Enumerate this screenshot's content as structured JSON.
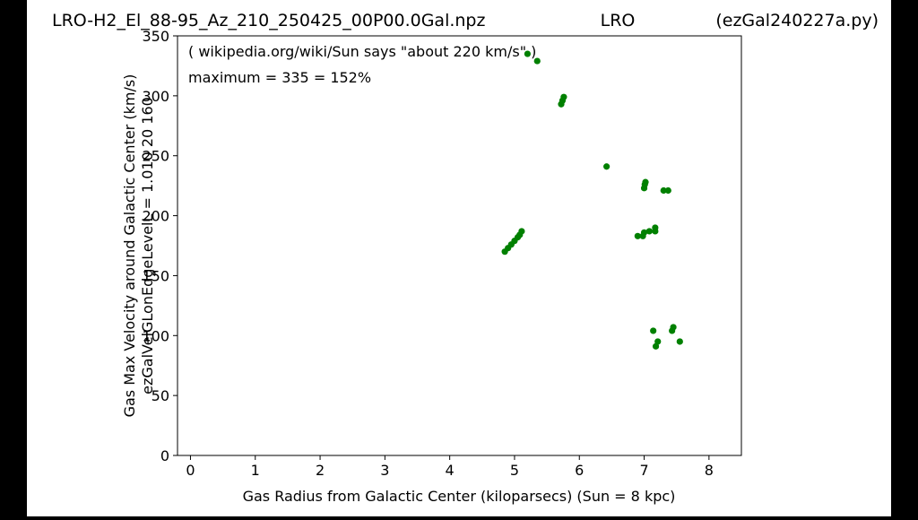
{
  "header": {
    "left": "LRO-H2_El_88-95_Az_210_250425_00P00.0Gal.npz",
    "center": "LRO",
    "right": "(ezGal240227a.py)"
  },
  "chart_data": {
    "type": "scatter",
    "xlabel": "Gas Radius from Galactic Center (kiloparsecs)  (Sun = 8 kpc)",
    "ylabel_lines": [
      "Gas Max Velocity around Galactic Center (km/s)",
      "ezGalVelGLonEdgeLevelL = 1.010  20  160"
    ],
    "xlim": [
      -0.2,
      8.5
    ],
    "ylim": [
      0,
      350
    ],
    "x_ticks": [
      0,
      1,
      2,
      3,
      4,
      5,
      6,
      7,
      8
    ],
    "y_ticks": [
      0,
      50,
      100,
      150,
      200,
      250,
      300,
      350
    ],
    "annotations": [
      "( wikipedia.org/wiki/Sun says \"about 220 km/s\" )",
      "maximum = 335 = 152%"
    ],
    "marker_color": "#008000",
    "points": [
      {
        "x": 4.85,
        "y": 170
      },
      {
        "x": 4.9,
        "y": 173
      },
      {
        "x": 4.95,
        "y": 176
      },
      {
        "x": 5.0,
        "y": 179
      },
      {
        "x": 5.05,
        "y": 182
      },
      {
        "x": 5.08,
        "y": 184
      },
      {
        "x": 5.11,
        "y": 187
      },
      {
        "x": 5.2,
        "y": 335
      },
      {
        "x": 5.35,
        "y": 329
      },
      {
        "x": 5.72,
        "y": 293
      },
      {
        "x": 5.74,
        "y": 296
      },
      {
        "x": 5.76,
        "y": 299
      },
      {
        "x": 6.42,
        "y": 241
      },
      {
        "x": 7.0,
        "y": 223
      },
      {
        "x": 7.01,
        "y": 226
      },
      {
        "x": 7.02,
        "y": 228
      },
      {
        "x": 7.3,
        "y": 221
      },
      {
        "x": 7.37,
        "y": 221
      },
      {
        "x": 6.9,
        "y": 183
      },
      {
        "x": 6.98,
        "y": 183
      },
      {
        "x": 7.0,
        "y": 186
      },
      {
        "x": 7.08,
        "y": 187
      },
      {
        "x": 7.17,
        "y": 187
      },
      {
        "x": 7.17,
        "y": 190
      },
      {
        "x": 7.14,
        "y": 104
      },
      {
        "x": 7.18,
        "y": 91
      },
      {
        "x": 7.21,
        "y": 95
      },
      {
        "x": 7.43,
        "y": 104
      },
      {
        "x": 7.45,
        "y": 107
      },
      {
        "x": 7.55,
        "y": 95
      }
    ]
  }
}
